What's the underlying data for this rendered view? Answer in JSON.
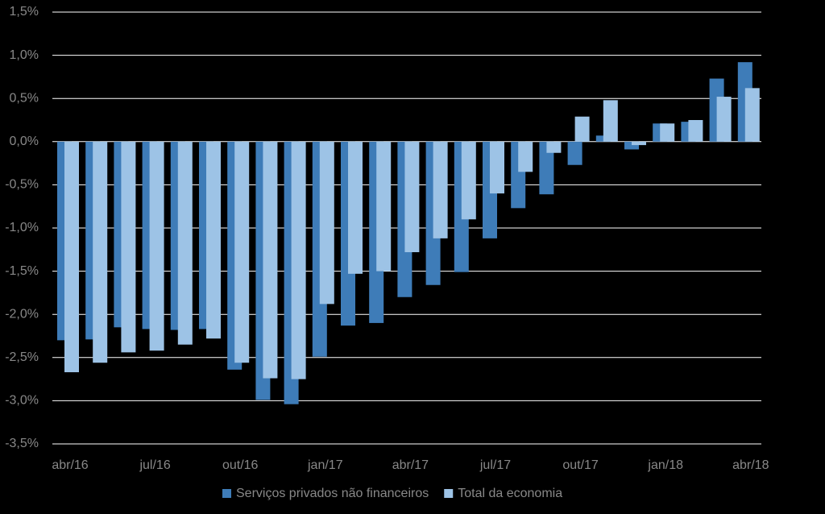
{
  "chart_data": {
    "type": "bar",
    "categories": [
      "abr/16",
      null,
      null,
      "jul/16",
      null,
      null,
      "out/16",
      null,
      null,
      "jan/17",
      null,
      null,
      "abr/17",
      null,
      null,
      "jul/17",
      null,
      null,
      "out/17",
      null,
      null,
      "jan/18",
      null,
      null,
      "abr/18"
    ],
    "series": [
      {
        "name": "Serviços privados não financeiros",
        "color": "#3e7cb8",
        "values": [
          -2.3,
          -2.29,
          -2.15,
          -2.17,
          -2.18,
          -2.17,
          -2.64,
          -2.99,
          -3.04,
          -2.49,
          -2.13,
          -2.1,
          -1.8,
          -1.66,
          -1.51,
          -1.12,
          -0.77,
          -0.61,
          -0.27,
          0.07,
          -0.09,
          0.21,
          0.23,
          0.73,
          0.92
        ]
      },
      {
        "name": "Total da economia",
        "color": "#9dc3e6",
        "values": [
          -2.67,
          -2.56,
          -2.44,
          -2.42,
          -2.35,
          -2.28,
          -2.56,
          -2.74,
          -2.75,
          -1.88,
          -1.53,
          -1.5,
          -1.28,
          -1.12,
          -0.9,
          -0.6,
          -0.35,
          -0.13,
          0.29,
          0.48,
          -0.04,
          0.21,
          0.25,
          0.52,
          0.62
        ]
      }
    ],
    "ylim": [
      -3.5,
      1.5
    ],
    "yticks": [
      {
        "value": -3.5,
        "label": "-3,5%"
      },
      {
        "value": -3.0,
        "label": "-3,0%"
      },
      {
        "value": -2.5,
        "label": "-2,5%"
      },
      {
        "value": -2.0,
        "label": "-2,0%"
      },
      {
        "value": -1.5,
        "label": "-1,5%"
      },
      {
        "value": -1.0,
        "label": "-1,0%"
      },
      {
        "value": -0.5,
        "label": "-0,5%"
      },
      {
        "value": 0.0,
        "label": "0,0%"
      },
      {
        "value": 0.5,
        "label": "0,5%"
      },
      {
        "value": 1.0,
        "label": "1,0%"
      },
      {
        "value": 1.5,
        "label": "1,5%"
      }
    ],
    "grid": true,
    "legend": "bottom"
  }
}
